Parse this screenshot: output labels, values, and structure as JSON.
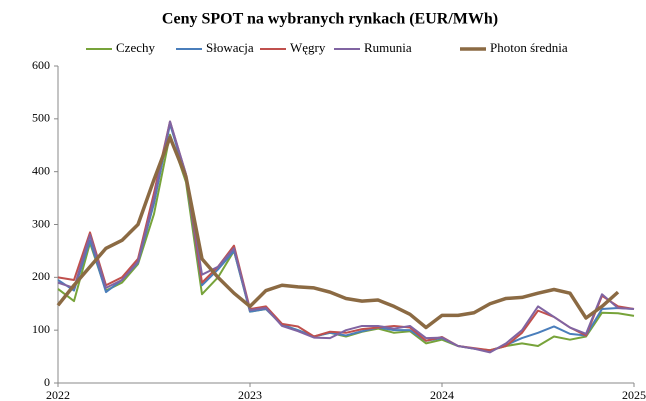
{
  "chart_data": {
    "type": "line",
    "title": "Ceny SPOT na wybranych rynkach (EUR/MWh)",
    "categories": [
      "2022",
      null,
      null,
      null,
      null,
      null,
      null,
      null,
      null,
      null,
      null,
      null,
      "2023",
      null,
      null,
      null,
      null,
      null,
      null,
      null,
      null,
      null,
      null,
      null,
      "2024",
      null,
      null,
      null,
      null,
      null,
      null,
      null,
      null,
      null,
      null,
      null,
      "2025"
    ],
    "series": [
      {
        "name": "Czechy",
        "color": "#77a33a",
        "width": 2,
        "values": [
          178,
          155,
          265,
          175,
          190,
          225,
          320,
          470,
          380,
          168,
          200,
          250,
          135,
          140,
          110,
          100,
          88,
          95,
          88,
          97,
          103,
          95,
          98,
          75,
          82,
          70,
          65,
          62,
          70,
          75,
          70,
          88,
          82,
          88,
          133,
          132,
          127
        ]
      },
      {
        "name": "Słowacja",
        "color": "#4a7ebb",
        "width": 2,
        "values": [
          195,
          175,
          270,
          172,
          195,
          228,
          340,
          490,
          390,
          185,
          215,
          250,
          135,
          140,
          110,
          100,
          88,
          95,
          90,
          98,
          105,
          100,
          100,
          80,
          85,
          70,
          65,
          60,
          72,
          85,
          95,
          107,
          93,
          90,
          140,
          142,
          140
        ]
      },
      {
        "name": "Węgry",
        "color": "#c0504d",
        "width": 2,
        "values": [
          200,
          195,
          285,
          185,
          200,
          235,
          360,
          495,
          395,
          190,
          220,
          260,
          140,
          145,
          112,
          107,
          88,
          97,
          95,
          102,
          105,
          108,
          105,
          80,
          87,
          70,
          66,
          62,
          70,
          95,
          137,
          125,
          105,
          90,
          165,
          145,
          140
        ]
      },
      {
        "name": "Rumunia",
        "color": "#8064a2",
        "width": 2,
        "values": [
          190,
          180,
          280,
          180,
          195,
          230,
          350,
          495,
          395,
          205,
          220,
          255,
          138,
          142,
          108,
          98,
          86,
          85,
          100,
          108,
          108,
          103,
          108,
          85,
          86,
          70,
          65,
          58,
          75,
          100,
          145,
          125,
          105,
          93,
          168,
          142,
          140
        ]
      },
      {
        "name": "Photon średnia",
        "color": "#8b6a43",
        "width": 3.5,
        "values": [
          147,
          185,
          220,
          255,
          270,
          300,
          385,
          465,
          390,
          235,
          200,
          170,
          145,
          175,
          185,
          182,
          180,
          172,
          160,
          155,
          157,
          145,
          130,
          105,
          128,
          128,
          133,
          150,
          160,
          162,
          170,
          177,
          170,
          123,
          145,
          172,
          null
        ]
      }
    ],
    "ylim": [
      0,
      600
    ],
    "yticks": [
      0,
      100,
      200,
      300,
      400,
      500,
      600
    ],
    "grid": false,
    "legend": "top"
  }
}
